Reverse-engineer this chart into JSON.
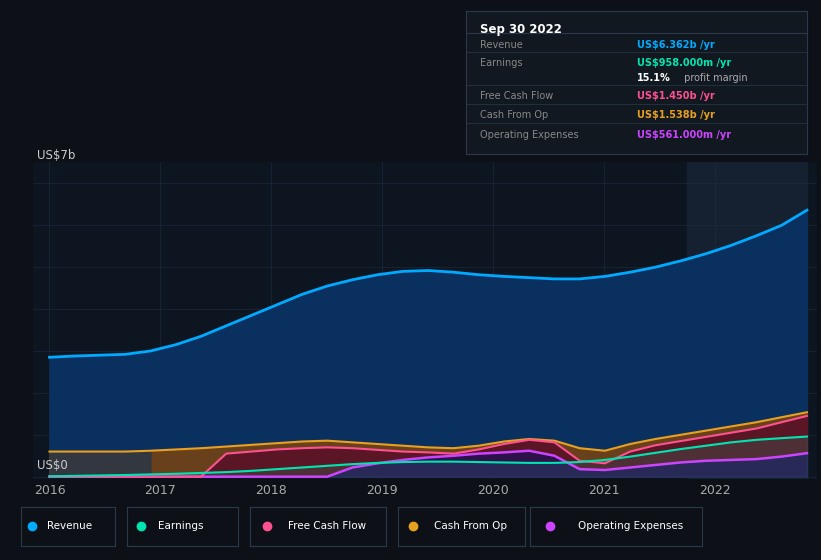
{
  "background_color": "#0d1117",
  "plot_bg_color": "#0d1520",
  "grid_color": "#1e2d40",
  "highlight_region": [
    2021.75,
    2022.83
  ],
  "highlight_color": "#152030",
  "ylabel": "US$7b",
  "ylabel0": "US$0",
  "ylim": [
    -0.05,
    7.5
  ],
  "xlim": [
    2015.85,
    2022.92
  ],
  "xticks": [
    2016,
    2017,
    2018,
    2019,
    2020,
    2021,
    2022
  ],
  "revenue_color": "#00aaff",
  "earnings_color": "#00e5b0",
  "fcf_color": "#ff5090",
  "cfo_color": "#e8a020",
  "opex_color": "#cc44ff",
  "revenue": [
    2.85,
    2.88,
    2.9,
    2.92,
    3.0,
    3.15,
    3.35,
    3.6,
    3.85,
    4.1,
    4.35,
    4.55,
    4.7,
    4.82,
    4.9,
    4.92,
    4.88,
    4.82,
    4.78,
    4.75,
    4.72,
    4.72,
    4.78,
    4.88,
    5.0,
    5.15,
    5.32,
    5.52,
    5.75,
    6.0,
    6.36
  ],
  "earnings": [
    0.01,
    0.02,
    0.03,
    0.04,
    0.055,
    0.07,
    0.09,
    0.11,
    0.14,
    0.18,
    0.22,
    0.26,
    0.3,
    0.33,
    0.35,
    0.36,
    0.36,
    0.35,
    0.34,
    0.33,
    0.33,
    0.35,
    0.4,
    0.48,
    0.57,
    0.66,
    0.74,
    0.82,
    0.88,
    0.92,
    0.958
  ],
  "fcf": [
    0.0,
    0.0,
    0.0,
    0.0,
    0.0,
    0.0,
    0.0,
    0.55,
    0.6,
    0.65,
    0.68,
    0.7,
    0.68,
    0.64,
    0.6,
    0.58,
    0.55,
    0.65,
    0.78,
    0.88,
    0.82,
    0.38,
    0.32,
    0.6,
    0.75,
    0.85,
    0.95,
    1.05,
    1.15,
    1.3,
    1.45
  ],
  "cfo": [
    0.6,
    0.6,
    0.6,
    0.6,
    0.62,
    0.65,
    0.68,
    0.72,
    0.76,
    0.8,
    0.84,
    0.86,
    0.82,
    0.78,
    0.74,
    0.7,
    0.68,
    0.74,
    0.84,
    0.9,
    0.86,
    0.68,
    0.62,
    0.78,
    0.9,
    1.0,
    1.1,
    1.2,
    1.3,
    1.42,
    1.538
  ],
  "opex": [
    0.0,
    0.0,
    0.0,
    0.0,
    0.0,
    0.0,
    0.0,
    0.0,
    0.0,
    0.0,
    0.0,
    0.0,
    0.22,
    0.32,
    0.4,
    0.46,
    0.5,
    0.55,
    0.58,
    0.62,
    0.5,
    0.18,
    0.16,
    0.22,
    0.28,
    0.34,
    0.38,
    0.4,
    0.42,
    0.48,
    0.561
  ],
  "n_points": 31,
  "x_start": 2016.0,
  "x_end": 2022.83,
  "gray_block_end": 2017.0,
  "tooltip_title": "Sep 30 2022",
  "tooltip_rows": [
    {
      "label": "Revenue",
      "value": "US$6.362b /yr",
      "color": "#00aaff",
      "sep_after": true
    },
    {
      "label": "Earnings",
      "value": "US$958.000m /yr",
      "color": "#00e5b0",
      "sep_after": false
    },
    {
      "label": "",
      "value": "15.1% profit margin",
      "color": "#ffffff",
      "bold_prefix": "15.1%",
      "sep_after": true
    },
    {
      "label": "Free Cash Flow",
      "value": "US$1.450b /yr",
      "color": "#ff5090",
      "sep_after": true
    },
    {
      "label": "Cash From Op",
      "value": "US$1.538b /yr",
      "color": "#e8a020",
      "sep_after": true
    },
    {
      "label": "Operating Expenses",
      "value": "US$561.000m /yr",
      "color": "#cc44ff",
      "sep_after": false
    }
  ],
  "tooltip_bg": "#111820",
  "tooltip_border": "#2a3a4a",
  "legend_labels": [
    "Revenue",
    "Earnings",
    "Free Cash Flow",
    "Cash From Op",
    "Operating Expenses"
  ],
  "legend_colors": [
    "#00aaff",
    "#00e5b0",
    "#ff5090",
    "#e8a020",
    "#cc44ff"
  ]
}
